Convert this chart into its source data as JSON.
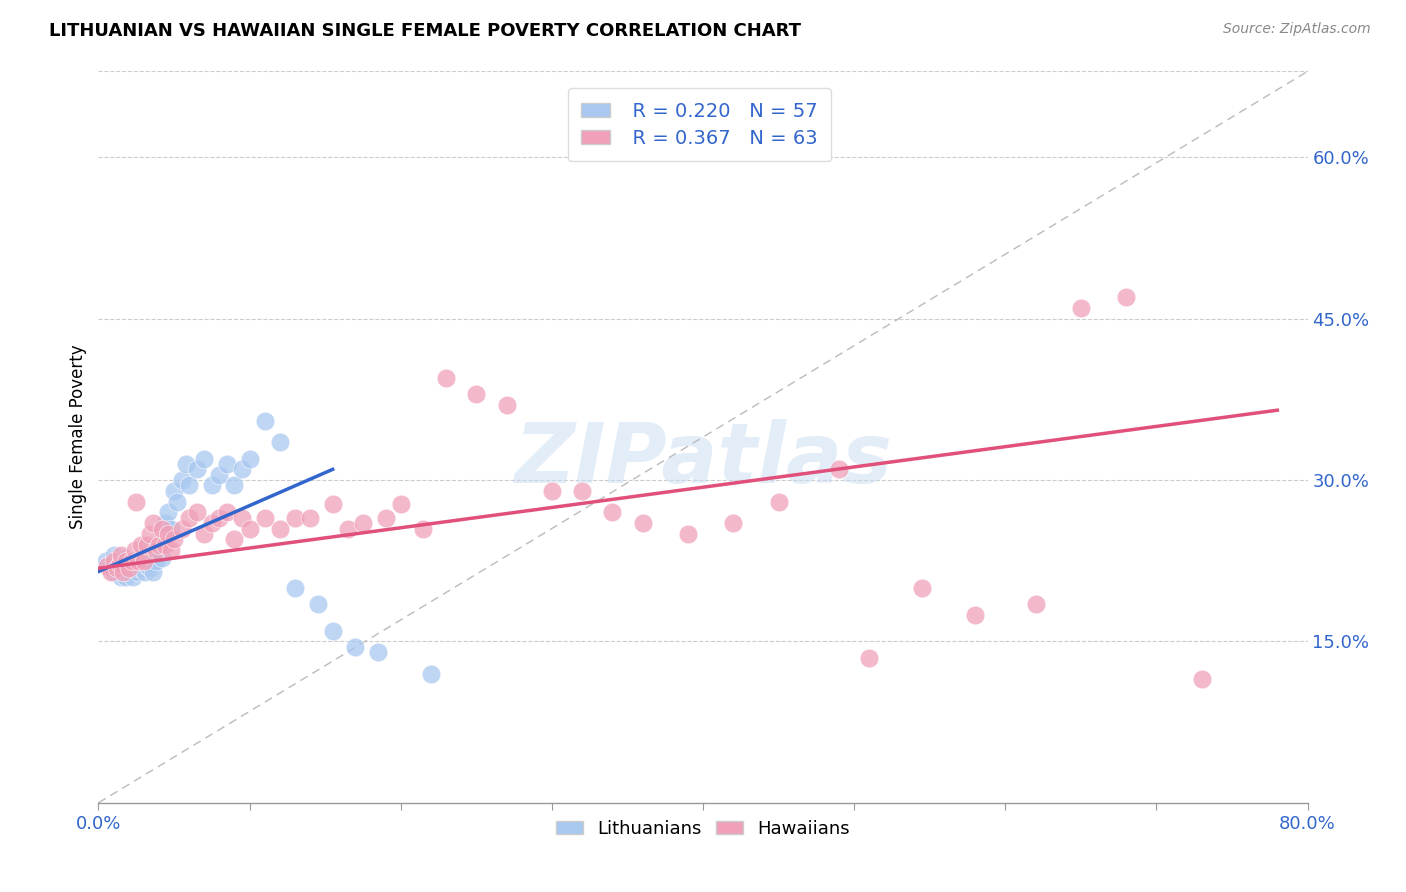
{
  "title": "LITHUANIAN VS HAWAIIAN SINGLE FEMALE POVERTY CORRELATION CHART",
  "source": "Source: ZipAtlas.com",
  "ylabel": "Single Female Poverty",
  "xlim": [
    0.0,
    0.8
  ],
  "ylim": [
    0.0,
    0.68
  ],
  "xtick_positions": [
    0.0,
    0.1,
    0.2,
    0.3,
    0.4,
    0.5,
    0.6,
    0.7,
    0.8
  ],
  "xticklabels": [
    "0.0%",
    "",
    "",
    "",
    "",
    "",
    "",
    "",
    "80.0%"
  ],
  "ytick_positions": [
    0.15,
    0.3,
    0.45,
    0.6
  ],
  "yticklabels": [
    "15.0%",
    "30.0%",
    "45.0%",
    "60.0%"
  ],
  "blue_color": "#A8C8F0",
  "blue_line_color": "#3366CC",
  "pink_color": "#F0A0B8",
  "pink_line_color": "#E0507A",
  "dashed_line_color": "#BBBBBB",
  "watermark": "ZIPatlas",
  "legend_R1": "R = 0.220",
  "legend_N1": "N = 57",
  "legend_R2": "R = 0.367",
  "legend_N2": "N = 63",
  "blue_scatter_x": [
    0.005,
    0.008,
    0.01,
    0.01,
    0.012,
    0.013,
    0.015,
    0.015,
    0.015,
    0.016,
    0.017,
    0.018,
    0.019,
    0.02,
    0.02,
    0.021,
    0.022,
    0.023,
    0.024,
    0.025,
    0.026,
    0.027,
    0.028,
    0.03,
    0.031,
    0.032,
    0.033,
    0.034,
    0.035,
    0.036,
    0.038,
    0.04,
    0.042,
    0.044,
    0.046,
    0.048,
    0.05,
    0.052,
    0.055,
    0.058,
    0.06,
    0.065,
    0.07,
    0.075,
    0.08,
    0.085,
    0.09,
    0.095,
    0.1,
    0.11,
    0.12,
    0.13,
    0.145,
    0.155,
    0.17,
    0.185,
    0.22
  ],
  "blue_scatter_y": [
    0.225,
    0.22,
    0.215,
    0.23,
    0.22,
    0.215,
    0.225,
    0.21,
    0.218,
    0.222,
    0.228,
    0.21,
    0.215,
    0.22,
    0.225,
    0.215,
    0.22,
    0.21,
    0.218,
    0.222,
    0.215,
    0.22,
    0.218,
    0.225,
    0.215,
    0.22,
    0.228,
    0.218,
    0.222,
    0.215,
    0.225,
    0.235,
    0.228,
    0.26,
    0.27,
    0.255,
    0.29,
    0.28,
    0.3,
    0.315,
    0.295,
    0.31,
    0.32,
    0.295,
    0.305,
    0.315,
    0.295,
    0.31,
    0.32,
    0.355,
    0.335,
    0.2,
    0.185,
    0.16,
    0.145,
    0.14,
    0.12
  ],
  "pink_scatter_x": [
    0.006,
    0.008,
    0.01,
    0.012,
    0.014,
    0.015,
    0.016,
    0.018,
    0.02,
    0.022,
    0.024,
    0.025,
    0.026,
    0.028,
    0.03,
    0.032,
    0.034,
    0.036,
    0.038,
    0.04,
    0.042,
    0.044,
    0.046,
    0.048,
    0.05,
    0.055,
    0.06,
    0.065,
    0.07,
    0.075,
    0.08,
    0.085,
    0.09,
    0.095,
    0.1,
    0.11,
    0.12,
    0.13,
    0.14,
    0.155,
    0.165,
    0.175,
    0.19,
    0.2,
    0.215,
    0.23,
    0.25,
    0.27,
    0.3,
    0.32,
    0.34,
    0.36,
    0.39,
    0.42,
    0.45,
    0.49,
    0.51,
    0.545,
    0.58,
    0.62,
    0.65,
    0.68,
    0.73
  ],
  "pink_scatter_y": [
    0.22,
    0.215,
    0.225,
    0.218,
    0.222,
    0.23,
    0.215,
    0.225,
    0.218,
    0.225,
    0.235,
    0.28,
    0.225,
    0.24,
    0.225,
    0.24,
    0.25,
    0.26,
    0.235,
    0.24,
    0.255,
    0.24,
    0.25,
    0.235,
    0.245,
    0.255,
    0.265,
    0.27,
    0.25,
    0.26,
    0.265,
    0.27,
    0.245,
    0.265,
    0.255,
    0.265,
    0.255,
    0.265,
    0.265,
    0.278,
    0.255,
    0.26,
    0.265,
    0.278,
    0.255,
    0.395,
    0.38,
    0.37,
    0.29,
    0.29,
    0.27,
    0.26,
    0.25,
    0.26,
    0.28,
    0.31,
    0.135,
    0.2,
    0.175,
    0.185,
    0.46,
    0.47,
    0.115
  ],
  "blue_line_x": [
    0.0,
    0.155
  ],
  "blue_line_y_start": 0.215,
  "blue_line_y_end": 0.31,
  "pink_line_x": [
    0.0,
    0.78
  ],
  "pink_line_y_start": 0.218,
  "pink_line_y_end": 0.365
}
